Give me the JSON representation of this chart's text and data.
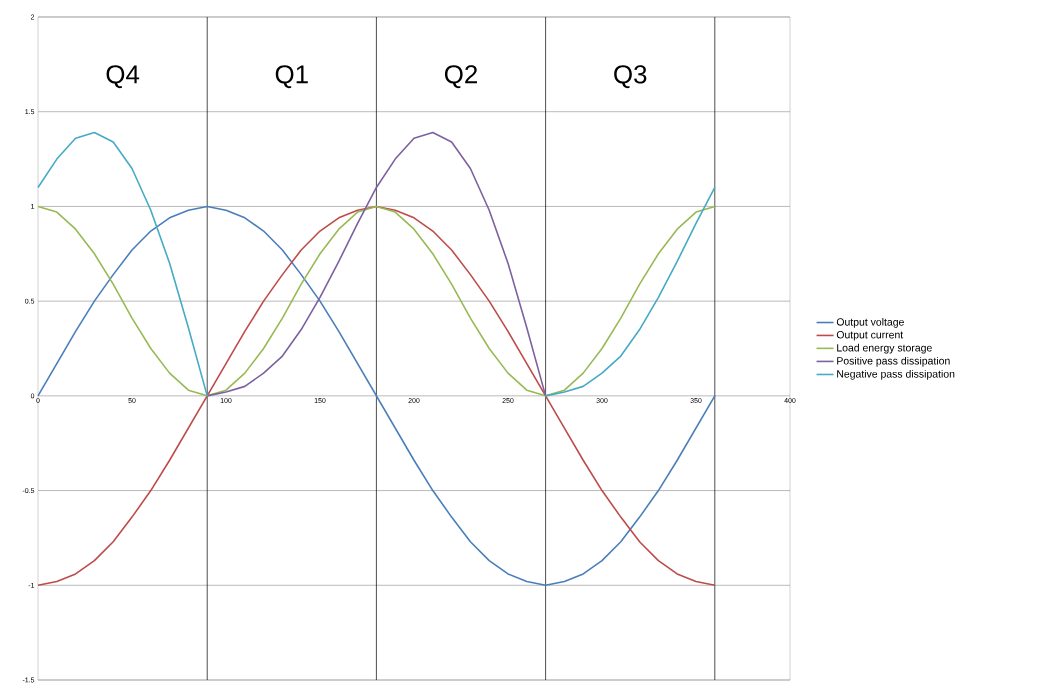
{
  "chart_data": {
    "type": "line",
    "x": [
      0,
      10,
      20,
      30,
      40,
      50,
      60,
      70,
      80,
      90,
      100,
      110,
      120,
      130,
      140,
      150,
      160,
      170,
      180,
      190,
      200,
      210,
      220,
      230,
      240,
      250,
      260,
      270,
      280,
      290,
      300,
      310,
      320,
      330,
      340,
      350,
      360
    ],
    "series": [
      {
        "name": "Output voltage",
        "color": "#4a7ebb",
        "values": [
          0,
          0.17,
          0.34,
          0.5,
          0.64,
          0.77,
          0.87,
          0.94,
          0.98,
          1,
          0.98,
          0.94,
          0.87,
          0.77,
          0.64,
          0.5,
          0.34,
          0.17,
          0,
          -0.17,
          -0.34,
          -0.5,
          -0.64,
          -0.77,
          -0.87,
          -0.94,
          -0.98,
          -1,
          -0.98,
          -0.94,
          -0.87,
          -0.77,
          -0.64,
          -0.5,
          -0.34,
          -0.17,
          0
        ]
      },
      {
        "name": "Output current",
        "color": "#be4b48",
        "values": [
          -1,
          -0.98,
          -0.94,
          -0.87,
          -0.77,
          -0.64,
          -0.5,
          -0.34,
          -0.17,
          0,
          0.17,
          0.34,
          0.5,
          0.64,
          0.77,
          0.87,
          0.94,
          0.98,
          1,
          0.98,
          0.94,
          0.87,
          0.77,
          0.64,
          0.5,
          0.34,
          0.17,
          0,
          -0.17,
          -0.34,
          -0.5,
          -0.64,
          -0.77,
          -0.87,
          -0.94,
          -0.98,
          -1
        ]
      },
      {
        "name": "Load energy storage",
        "color": "#98b954",
        "values": [
          1,
          0.97,
          0.88,
          0.75,
          0.59,
          0.41,
          0.25,
          0.12,
          0.03,
          0,
          0.03,
          0.12,
          0.25,
          0.41,
          0.59,
          0.75,
          0.88,
          0.97,
          1,
          0.97,
          0.88,
          0.75,
          0.59,
          0.41,
          0.25,
          0.12,
          0.03,
          0,
          0.03,
          0.12,
          0.25,
          0.41,
          0.59,
          0.75,
          0.88,
          0.97,
          1
        ]
      },
      {
        "name": "Positive pass dissipation",
        "color": "#7d60a0",
        "values": [
          null,
          null,
          null,
          null,
          null,
          null,
          null,
          null,
          null,
          0,
          0.02,
          0.05,
          0.12,
          0.21,
          0.35,
          0.52,
          0.71,
          0.91,
          1.1,
          1.25,
          1.36,
          1.39,
          1.34,
          1.2,
          0.98,
          0.7,
          0.36,
          0,
          null,
          null,
          null,
          null,
          null,
          null,
          null,
          null,
          null
        ]
      },
      {
        "name": "Negative pass dissipation",
        "color": "#46aac5",
        "values": [
          1.1,
          1.25,
          1.36,
          1.39,
          1.34,
          1.2,
          0.98,
          0.7,
          0.36,
          0,
          null,
          null,
          null,
          null,
          null,
          null,
          null,
          null,
          null,
          null,
          null,
          null,
          null,
          null,
          null,
          null,
          null,
          0,
          0.02,
          0.05,
          0.12,
          0.21,
          0.35,
          0.52,
          0.71,
          0.91,
          1.1
        ]
      }
    ],
    "xlim": [
      0,
      400
    ],
    "xticks": [
      0,
      50,
      100,
      150,
      200,
      250,
      300,
      350,
      400
    ],
    "ylim": [
      -1.5,
      2
    ],
    "yticks": [
      {
        "value": -1.5,
        "label": "-1.5"
      },
      {
        "value": -1,
        "label": "-1"
      },
      {
        "value": -0.5,
        "label": "-0.5"
      },
      0,
      0.5,
      1,
      1.5,
      2
    ],
    "grid": "y",
    "legend": "right",
    "ref_lines": [
      {
        "axis": "x",
        "value": 90,
        "color": "#000000"
      },
      {
        "axis": "x",
        "value": 180,
        "color": "#000000"
      },
      {
        "axis": "x",
        "value": 270,
        "color": "#000000"
      },
      {
        "axis": "x",
        "value": 360,
        "color": "#000000"
      }
    ],
    "annotations": [
      "Q4",
      "Q1",
      "Q2",
      "Q3"
    ]
  }
}
